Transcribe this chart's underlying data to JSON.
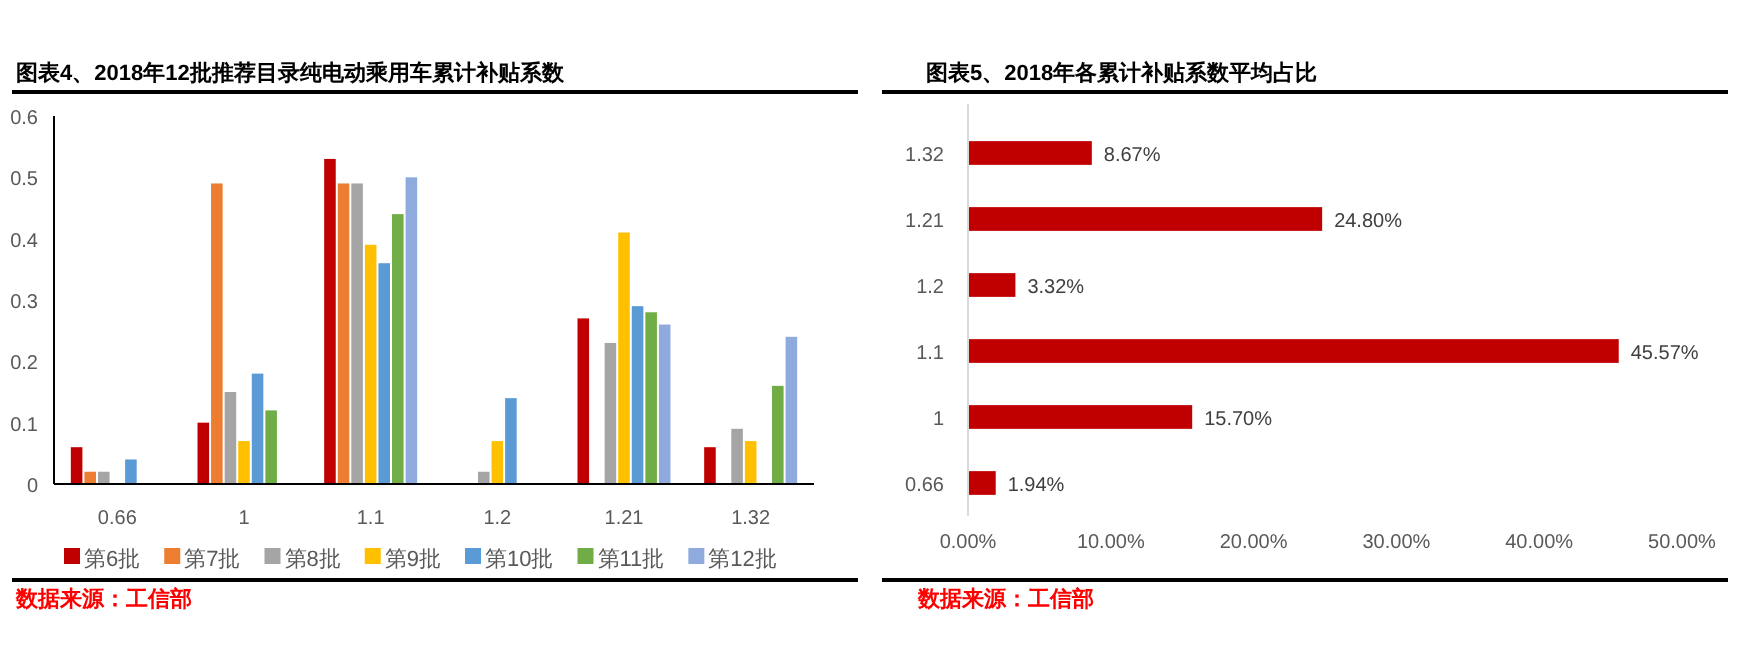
{
  "chart_data": [
    {
      "type": "bar",
      "title": "图表4、2018年12批推荐目录纯电动乘用车累计补贴系数",
      "categories": [
        "0.66",
        "1",
        "1.1",
        "1.2",
        "1.21",
        "1.32"
      ],
      "series": [
        {
          "name": "第6批",
          "color": "#c00000",
          "values": [
            0.06,
            0.1,
            0.53,
            null,
            0.27,
            0.06
          ]
        },
        {
          "name": "第7批",
          "color": "#ed7d31",
          "values": [
            0.02,
            0.49,
            0.49,
            null,
            null,
            null
          ]
        },
        {
          "name": "第8批",
          "color": "#a5a5a5",
          "values": [
            0.02,
            0.15,
            0.49,
            0.02,
            0.23,
            0.09
          ]
        },
        {
          "name": "第9批",
          "color": "#ffc000",
          "values": [
            null,
            0.07,
            0.39,
            0.07,
            0.41,
            0.07
          ]
        },
        {
          "name": "第10批",
          "color": "#5b9bd5",
          "values": [
            0.04,
            0.18,
            0.36,
            0.14,
            0.29,
            null
          ]
        },
        {
          "name": "第11批",
          "color": "#70ad47",
          "values": [
            null,
            0.12,
            0.44,
            null,
            0.28,
            0.16
          ]
        },
        {
          "name": "第12批",
          "color": "#8faadc",
          "values": [
            null,
            null,
            0.5,
            null,
            0.26,
            0.24
          ]
        }
      ],
      "ylim": [
        0,
        0.6
      ],
      "yticks": [
        0,
        0.1,
        0.2,
        0.3,
        0.4,
        0.5,
        0.6
      ],
      "legend": "bottom",
      "annotations": [
        "数据来源：工信部"
      ]
    },
    {
      "type": "bar",
      "orientation": "horizontal",
      "title": "图表5、2018年各累计补贴系数平均占比",
      "categories": [
        "1.32",
        "1.21",
        "1.2",
        "1.1",
        "1",
        "0.66"
      ],
      "values": [
        8.67,
        24.8,
        3.32,
        45.57,
        15.7,
        1.94
      ],
      "color": "#c00000",
      "value_labels": [
        "8.67%",
        "24.80%",
        "3.32%",
        "45.57%",
        "15.70%",
        "1.94%"
      ],
      "xlim": [
        0,
        50
      ],
      "xticks": [
        {
          "value": 0,
          "label": "0.00%"
        },
        {
          "value": 10,
          "label": "10.00%"
        },
        {
          "value": 20,
          "label": "20.00%"
        },
        {
          "value": 30,
          "label": "30.00%"
        },
        {
          "value": 40,
          "label": "40.00%"
        },
        {
          "value": 50,
          "label": "50.00%"
        }
      ],
      "annotations": [
        "数据来源：工信部"
      ]
    }
  ]
}
